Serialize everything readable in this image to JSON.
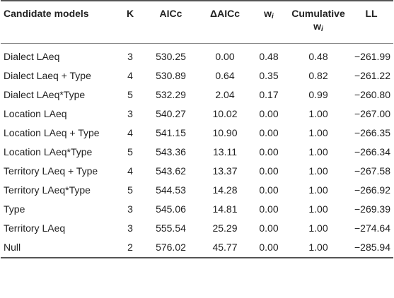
{
  "table": {
    "headers": {
      "model": "Candidate models",
      "k": "K",
      "aicc": "AICc",
      "daicc": "ΔAICc",
      "wi_base": "w",
      "wi_sub": "i",
      "cum_line1": "Cumulative",
      "cum_base": "w",
      "cum_sub": "i",
      "ll": "LL"
    },
    "rows": [
      {
        "model": "Dialect LAeq",
        "k": "3",
        "aicc": "530.25",
        "daicc": "0.00",
        "wi": "0.48",
        "cum": "0.48",
        "ll": "−261.99"
      },
      {
        "model": "Dialect Laeq + Type",
        "k": "4",
        "aicc": "530.89",
        "daicc": "0.64",
        "wi": "0.35",
        "cum": "0.82",
        "ll": "−261.22"
      },
      {
        "model": "Dialect LAeq*Type",
        "k": "5",
        "aicc": "532.29",
        "daicc": "2.04",
        "wi": "0.17",
        "cum": "0.99",
        "ll": "−260.80"
      },
      {
        "model": "Location LAeq",
        "k": "3",
        "aicc": "540.27",
        "daicc": "10.02",
        "wi": "0.00",
        "cum": "1.00",
        "ll": "−267.00"
      },
      {
        "model": "Location LAeq + Type",
        "k": "4",
        "aicc": "541.15",
        "daicc": "10.90",
        "wi": "0.00",
        "cum": "1.00",
        "ll": "−266.35"
      },
      {
        "model": "Location LAeq*Type",
        "k": "5",
        "aicc": "543.36",
        "daicc": "13.11",
        "wi": "0.00",
        "cum": "1.00",
        "ll": "−266.34"
      },
      {
        "model": "Territory LAeq + Type",
        "k": "4",
        "aicc": "543.62",
        "daicc": "13.37",
        "wi": "0.00",
        "cum": "1.00",
        "ll": "−267.58"
      },
      {
        "model": "Territory LAeq*Type",
        "k": "5",
        "aicc": "544.53",
        "daicc": "14.28",
        "wi": "0.00",
        "cum": "1.00",
        "ll": "−266.92"
      },
      {
        "model": "Type",
        "k": "3",
        "aicc": "545.06",
        "daicc": "14.81",
        "wi": "0.00",
        "cum": "1.00",
        "ll": "−269.39"
      },
      {
        "model": "Territory LAeq",
        "k": "3",
        "aicc": "555.54",
        "daicc": "25.29",
        "wi": "0.00",
        "cum": "1.00",
        "ll": "−274.64"
      },
      {
        "model": "Null",
        "k": "2",
        "aicc": "576.02",
        "daicc": "45.77",
        "wi": "0.00",
        "cum": "1.00",
        "ll": "−285.94"
      }
    ]
  }
}
